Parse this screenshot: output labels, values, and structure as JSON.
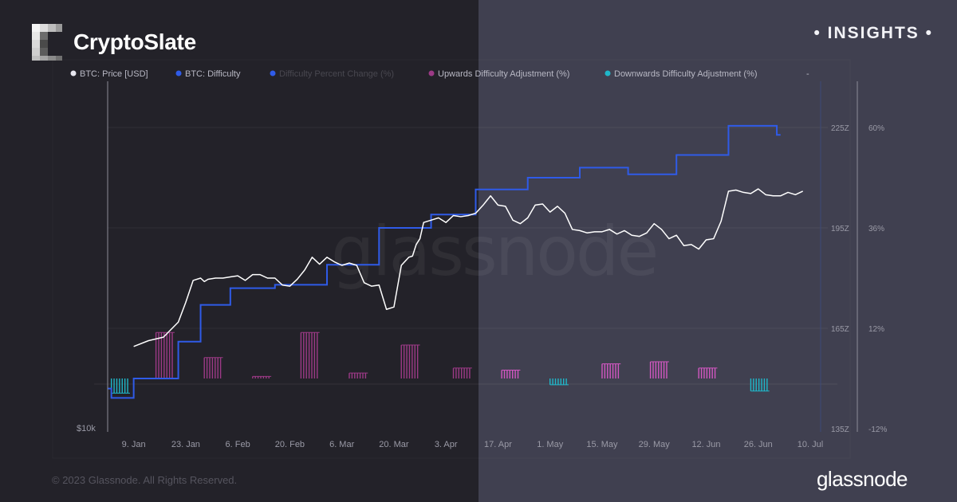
{
  "header": {
    "brand_name": "CryptoSlate",
    "insights_label": "• INSIGHTS •"
  },
  "footer": {
    "copyright": "© 2023 Glassnode. All Rights Reserved.",
    "logo_text": "glassnode"
  },
  "watermark": "glassnode",
  "colors": {
    "price": "#ffffff",
    "difficulty": "#2f5be8",
    "percent_change": "#2f5be8",
    "upwards": "#9c3a86",
    "upwards_highlight": "#d257c2",
    "downwards": "#1fb7c9"
  },
  "chart_data": {
    "type": "line",
    "legend": [
      {
        "name": "BTC: Price [USD]",
        "color": "#e6e6ee"
      },
      {
        "name": "BTC: Difficulty",
        "color": "#2f5be8"
      },
      {
        "name": "Difficulty Percent Change (%)",
        "color": "#2f5be8"
      },
      {
        "name": "Upwards Difficulty Adjustment (%)",
        "color": "#9c3a86"
      },
      {
        "name": "Downwards Difficulty Adjustment (%)",
        "color": "#1fb7c9"
      }
    ],
    "legend_extra": "-",
    "x_ticks": [
      "9. Jan",
      "23. Jan",
      "6. Feb",
      "20. Feb",
      "6. Mar",
      "20. Mar",
      "3. Apr",
      "17. Apr",
      "1. May",
      "15. May",
      "29. May",
      "12. Jun",
      "26. Jun",
      "10. Jul"
    ],
    "y_left_tick": "$10k",
    "y_difficulty_ticks": [
      "225Z",
      "195Z",
      "165Z",
      "135Z"
    ],
    "y_difficulty_range": [
      135,
      225
    ],
    "y_percent_ticks": [
      "60%",
      "36%",
      "12%",
      "-12%"
    ],
    "y_percent_range": [
      -12,
      60
    ],
    "x_range_days": [
      -7,
      185
    ],
    "price_range_usd": [
      10000,
      36000
    ],
    "price_series": {
      "name": "BTC: Price [USD]",
      "x_days": [
        0,
        4,
        8,
        12,
        14,
        16,
        18,
        19,
        20,
        22,
        24,
        26,
        28,
        30,
        32,
        34,
        36,
        38,
        40,
        42,
        44,
        46,
        48,
        50,
        52,
        54,
        56,
        58,
        60,
        62,
        64,
        66,
        68,
        70,
        72,
        74,
        75,
        76,
        77,
        78,
        80,
        82,
        84,
        86,
        88,
        90,
        92,
        94,
        96,
        98,
        100,
        102,
        104,
        106,
        108,
        110,
        112,
        114,
        116,
        118,
        120,
        122,
        124,
        126,
        128,
        130,
        132,
        134,
        136,
        138,
        140,
        142,
        144,
        146,
        148,
        150,
        152,
        154,
        156,
        158,
        160,
        162,
        164,
        166,
        168,
        170,
        172,
        174,
        176,
        178,
        180
      ],
      "values": [
        17100,
        17600,
        17900,
        19200,
        20900,
        22800,
        23000,
        22700,
        22900,
        23000,
        23000,
        23100,
        23200,
        22800,
        23300,
        23300,
        23000,
        23000,
        22400,
        22300,
        22900,
        23700,
        24800,
        24200,
        24800,
        24400,
        24100,
        24300,
        24100,
        22600,
        22300,
        22400,
        20300,
        20500,
        24100,
        24800,
        24900,
        25900,
        26400,
        27800,
        28000,
        28200,
        27800,
        28400,
        28300,
        28400,
        28600,
        29300,
        30100,
        29300,
        29200,
        28000,
        27700,
        28200,
        29300,
        29400,
        28700,
        29200,
        28600,
        27200,
        27100,
        26900,
        27000,
        27000,
        27200,
        26800,
        27100,
        26700,
        26600,
        26900,
        27700,
        27200,
        26400,
        26700,
        25800,
        25900,
        25500,
        26300,
        26400,
        27900,
        30500,
        30600,
        30400,
        30300,
        30700,
        30200,
        30100,
        30100,
        30400,
        30200,
        30500
      ]
    },
    "difficulty_series": {
      "name": "BTC: Difficulty",
      "x_days": [
        -7,
        -6,
        0,
        12,
        18,
        26,
        38,
        52,
        66,
        80,
        92,
        106,
        120,
        133,
        146,
        160,
        173,
        174
      ],
      "values": [
        147,
        144.2,
        150,
        161,
        172,
        177,
        178,
        184,
        195,
        199,
        206.5,
        210,
        213,
        211,
        216.8,
        225.5,
        222.8,
        222.8
      ]
    },
    "upwards_adjustments": [
      {
        "x_days": 6,
        "percent": 11
      },
      {
        "x_days": 19,
        "percent": 5
      },
      {
        "x_days": 32,
        "percent": 0.5
      },
      {
        "x_days": 45,
        "percent": 11
      },
      {
        "x_days": 58,
        "percent": 1.3
      },
      {
        "x_days": 72,
        "percent": 8
      },
      {
        "x_days": 86,
        "percent": 2.5
      },
      {
        "x_days": 99,
        "percent": 2
      },
      {
        "x_days": 126,
        "percent": 3.5
      },
      {
        "x_days": 139,
        "percent": 4
      },
      {
        "x_days": 152,
        "percent": 2.5
      }
    ],
    "downwards_adjustments": [
      {
        "x_days": -6,
        "percent": -3.5
      },
      {
        "x_days": 112,
        "percent": -1.5
      },
      {
        "x_days": 166,
        "percent": -3
      }
    ]
  }
}
